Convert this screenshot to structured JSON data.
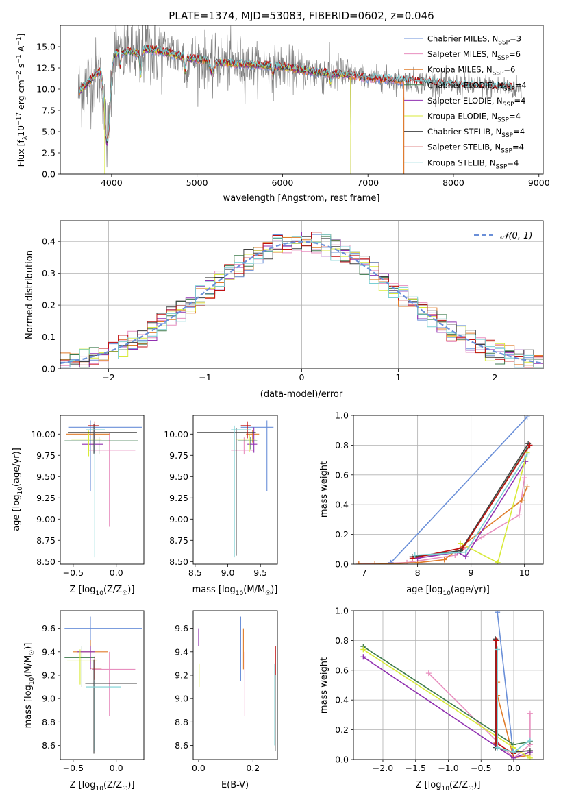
{
  "colors": {
    "chabrier_miles": "#6a8fd8",
    "salpeter_miles": "#e88fbf",
    "kroupa_miles": "#e07c2a",
    "chabrier_elodie": "#3d7a4c",
    "salpeter_elodie": "#9030b0",
    "kroupa_elodie": "#d8ea38",
    "chabrier_stelib": "#404040",
    "salpeter_stelib": "#c01010",
    "kroupa_stelib": "#7ad0d4",
    "data": "#808080",
    "gaussian": "#6a8fd8"
  },
  "chart_data": [
    {
      "id": "spectrum",
      "type": "line",
      "title": "PLATE=1374, MJD=53083, FIBERID=0602, z=0.046",
      "xlabel": "wavelength [Angstrom, rest frame]",
      "ylabel": "Flux [f_λ 10^-17 erg cm^-2 s^-1 A^-1]",
      "xlim": [
        3400,
        9050
      ],
      "ylim": [
        0,
        17.5
      ],
      "xticks": [
        4000,
        5000,
        6000,
        7000,
        8000,
        9000
      ],
      "yticks": [
        0.0,
        2.5,
        5.0,
        7.5,
        10.0,
        12.5,
        15.0
      ],
      "legend_position": "top-right",
      "legend": [
        {
          "key": "chabrier_miles",
          "label": "Chabrier MILES, N",
          "sub": "SSP",
          "suffix": "=3"
        },
        {
          "key": "salpeter_miles",
          "label": "Salpeter MILES, N",
          "sub": "SSP",
          "suffix": "=6"
        },
        {
          "key": "kroupa_miles",
          "label": "Kroupa MILES, N",
          "sub": "SSP",
          "suffix": "=6"
        },
        {
          "key": "chabrier_elodie",
          "label": "Chabrier ELODIE, N",
          "sub": "SSP",
          "suffix": "=4"
        },
        {
          "key": "salpeter_elodie",
          "label": "Salpeter ELODIE, N",
          "sub": "SSP",
          "suffix": "=4"
        },
        {
          "key": "kroupa_elodie",
          "label": "Kroupa ELODIE, N",
          "sub": "SSP",
          "suffix": "=4"
        },
        {
          "key": "chabrier_stelib",
          "label": "Chabrier STELIB, N",
          "sub": "SSP",
          "suffix": "=4"
        },
        {
          "key": "salpeter_stelib",
          "label": "Salpeter STELIB, N",
          "sub": "SSP",
          "suffix": "=4"
        },
        {
          "key": "kroupa_stelib",
          "label": "Kroupa STELIB, N",
          "sub": "SSP",
          "suffix": "=4"
        }
      ],
      "continuum": {
        "x": [
          3600,
          3700,
          3800,
          3900,
          4000,
          4100,
          4200,
          4300,
          4400,
          4500,
          4700,
          4900,
          5000,
          5200,
          5400,
          5600,
          5800,
          6000,
          6200,
          6400,
          6600,
          6800,
          7000,
          7200,
          7400,
          7600,
          7800,
          8000,
          8200,
          8400,
          8600,
          8800
        ],
        "y": [
          9.5,
          10.5,
          11.5,
          12.5,
          14.0,
          14.3,
          14.5,
          14.2,
          14.7,
          14.6,
          14.2,
          13.6,
          13.5,
          13.2,
          13.0,
          12.9,
          12.8,
          12.6,
          12.3,
          12.0,
          11.8,
          11.6,
          11.3,
          11.2,
          11.0,
          10.9,
          10.7,
          10.5,
          10.4,
          10.3,
          10.2,
          10.1
        ]
      }
    },
    {
      "id": "residuals",
      "type": "line",
      "xlabel": "(data-model)/error",
      "ylabel": "Normed distribution",
      "xlim": [
        -2.5,
        2.5
      ],
      "ylim": [
        0,
        0.465
      ],
      "xticks": [
        -2,
        -1,
        0,
        1,
        2
      ],
      "yticks": [
        0.0,
        0.1,
        0.2,
        0.3,
        0.4
      ],
      "grid": true,
      "legend_position": "top-right",
      "gaussian_label": "𝒩(0, 1)"
    },
    {
      "id": "age_vs_Z",
      "type": "scatter",
      "xlabel": "Z [log10(Z/Z☉)]",
      "ylabel": "age [log10(age/yr)]",
      "xlim": [
        -0.65,
        0.32
      ],
      "ylim": [
        8.47,
        10.22
      ],
      "xticks": [
        -0.5,
        0.0
      ],
      "yticks": [
        8.5,
        8.75,
        9.0,
        9.25,
        9.5,
        9.75,
        10.0
      ],
      "errorbars": [
        {
          "key": "chabrier_miles",
          "x": -0.3,
          "xerr": [
            0.25,
            0.6
          ],
          "y": 10.08,
          "yerr": [
            0.75,
            0.08
          ]
        },
        {
          "key": "salpeter_miles",
          "x": -0.08,
          "xerr": [
            0.25,
            0.3
          ],
          "y": 9.81,
          "yerr": [
            0.9,
            0.2
          ]
        },
        {
          "key": "kroupa_miles",
          "x": -0.28,
          "xerr": [
            0.3,
            0.2
          ],
          "y": 10.0,
          "yerr": [
            0.15,
            0.1
          ]
        },
        {
          "key": "chabrier_elodie",
          "x": -0.2,
          "xerr": [
            0.4,
            0.45
          ],
          "y": 9.92,
          "yerr": [
            0.15,
            0.05
          ]
        },
        {
          "key": "salpeter_elodie",
          "x": -0.25,
          "xerr": [
            0.15,
            0.1
          ],
          "y": 9.88,
          "yerr": [
            0.1,
            0.2
          ]
        },
        {
          "key": "kroupa_elodie",
          "x": -0.32,
          "xerr": [
            0.2,
            0.15
          ],
          "y": 9.94,
          "yerr": [
            0.2,
            0.1
          ]
        },
        {
          "key": "chabrier_stelib",
          "x": -0.26,
          "xerr": [
            0.3,
            0.5
          ],
          "y": 10.02,
          "yerr": [
            0.25,
            0.1
          ]
        },
        {
          "key": "salpeter_stelib",
          "x": -0.25,
          "xerr": [
            0.08,
            0.05
          ],
          "y": 10.1,
          "yerr": [
            0.15,
            0.05
          ]
        },
        {
          "key": "kroupa_stelib",
          "x": -0.25,
          "xerr": [
            0.1,
            0.12
          ],
          "y": 10.05,
          "yerr": [
            1.5,
            0.05
          ]
        }
      ]
    },
    {
      "id": "age_vs_mass",
      "type": "scatter",
      "xlabel": "mass [log10(M/M☉)]",
      "ylabel": "",
      "xlim": [
        8.47,
        9.76
      ],
      "ylim": [
        8.47,
        10.22
      ],
      "xticks": [
        8.5,
        9.0,
        9.5
      ],
      "yticks": [
        8.5,
        8.75,
        9.0,
        9.25,
        9.5,
        9.75,
        10.0
      ],
      "errorbars": [
        {
          "key": "chabrier_miles",
          "x": 9.6,
          "xerr": [
            0.4,
            0.1
          ],
          "y": 10.08,
          "yerr": [
            0.75,
            0.08
          ]
        },
        {
          "key": "salpeter_miles",
          "x": 9.25,
          "xerr": [
            0.2,
            0.15
          ],
          "y": 9.81,
          "yerr": [
            0.05,
            0.15
          ]
        },
        {
          "key": "kroupa_miles",
          "x": 9.38,
          "xerr": [
            0.1,
            0.1
          ],
          "y": 10.0,
          "yerr": [
            0.1,
            0.05
          ]
        },
        {
          "key": "chabrier_elodie",
          "x": 9.35,
          "xerr": [
            0.2,
            0.1
          ],
          "y": 9.92,
          "yerr": [
            0.1,
            0.05
          ]
        },
        {
          "key": "salpeter_elodie",
          "x": 9.4,
          "xerr": [
            0.1,
            0.05
          ],
          "y": 9.88,
          "yerr": [
            0.1,
            0.2
          ]
        },
        {
          "key": "kroupa_elodie",
          "x": 9.33,
          "xerr": [
            0.2,
            0.1
          ],
          "y": 9.94,
          "yerr": [
            0.15,
            0.05
          ]
        },
        {
          "key": "chabrier_stelib",
          "x": 9.13,
          "xerr": [
            0.6,
            0.3
          ],
          "y": 10.02,
          "yerr": [
            1.45,
            0.05
          ]
        },
        {
          "key": "salpeter_stelib",
          "x": 9.3,
          "xerr": [
            0.1,
            0.05
          ],
          "y": 10.1,
          "yerr": [
            0.15,
            0.05
          ]
        },
        {
          "key": "kroupa_stelib",
          "x": 9.1,
          "xerr": [
            0.05,
            0.25
          ],
          "y": 10.05,
          "yerr": [
            1.5,
            0.05
          ]
        }
      ]
    },
    {
      "id": "weight_vs_age",
      "type": "line",
      "xlabel": "age  [log10(age/yr)]",
      "ylabel": "mass weight",
      "xlim": [
        6.8,
        10.35
      ],
      "ylim": [
        0,
        1.0
      ],
      "xticks": [
        7,
        8,
        9,
        10
      ],
      "yticks": [
        0.0,
        0.2,
        0.4,
        0.6,
        0.8,
        1.0
      ],
      "grid": true,
      "series": [
        {
          "key": "chabrier_miles",
          "x": [
            7.5,
            10.05
          ],
          "y": [
            0.01,
            0.99
          ]
        },
        {
          "key": "salpeter_miles",
          "x": [
            6.9,
            7.8,
            8.7,
            9.2,
            9.9,
            10.0
          ],
          "y": [
            0.0,
            0.01,
            0.06,
            0.18,
            0.33,
            0.58
          ]
        },
        {
          "key": "kroupa_miles",
          "x": [
            6.9,
            7.2,
            8.0,
            8.5,
            9.95,
            10.05
          ],
          "y": [
            0.0,
            0.0,
            0.01,
            0.03,
            0.43,
            0.52
          ]
        },
        {
          "key": "chabrier_elodie",
          "x": [
            7.9,
            8.8,
            10.05
          ],
          "y": [
            0.05,
            0.08,
            0.78
          ]
        },
        {
          "key": "salpeter_elodie",
          "x": [
            8.0,
            8.75,
            8.9,
            10.02
          ],
          "y": [
            0.04,
            0.08,
            0.05,
            0.69
          ]
        },
        {
          "key": "kroupa_elodie",
          "x": [
            8.8,
            9.5,
            10.05
          ],
          "y": [
            0.14,
            0.01,
            0.75
          ]
        },
        {
          "key": "chabrier_stelib",
          "x": [
            7.9,
            8.8,
            10.07
          ],
          "y": [
            0.05,
            0.09,
            0.81
          ]
        },
        {
          "key": "salpeter_stelib",
          "x": [
            7.9,
            8.85,
            10.1
          ],
          "y": [
            0.04,
            0.11,
            0.8
          ]
        },
        {
          "key": "kroupa_stelib",
          "x": [
            7.95,
            8.9,
            10.05
          ],
          "y": [
            0.06,
            0.08,
            0.74
          ]
        }
      ]
    },
    {
      "id": "mass_vs_Z",
      "type": "scatter",
      "xlabel": "Z [log10(Z/Z☉)]",
      "ylabel": "mass [log10(M/M☉)]",
      "xlim": [
        -0.65,
        0.32
      ],
      "ylim": [
        8.48,
        9.75
      ],
      "xticks": [
        -0.5,
        0.0
      ],
      "yticks": [
        8.6,
        8.8,
        9.0,
        9.2,
        9.4,
        9.6
      ],
      "errorbars": [
        {
          "key": "chabrier_miles",
          "x": -0.3,
          "xerr": [
            0.3,
            0.6
          ],
          "y": 9.6,
          "yerr": [
            0.15,
            0.1
          ]
        },
        {
          "key": "salpeter_miles",
          "x": -0.08,
          "xerr": [
            0.2,
            0.3
          ],
          "y": 9.25,
          "yerr": [
            0.4,
            0.15
          ]
        },
        {
          "key": "kroupa_miles",
          "x": -0.3,
          "xerr": [
            0.2,
            0.2
          ],
          "y": 9.4,
          "yerr": [
            0.1,
            0.1
          ]
        },
        {
          "key": "chabrier_elodie",
          "x": -0.4,
          "xerr": [
            0.2,
            0.15
          ],
          "y": 9.35,
          "yerr": [
            0.25,
            0.1
          ]
        },
        {
          "key": "salpeter_elodie",
          "x": -0.3,
          "xerr": [
            0.15,
            0.05
          ],
          "y": 9.4,
          "yerr": [
            0.15,
            0.05
          ]
        },
        {
          "key": "kroupa_elodie",
          "x": -0.42,
          "xerr": [
            0.15,
            0.2
          ],
          "y": 9.32,
          "yerr": [
            0.2,
            0.1
          ]
        },
        {
          "key": "chabrier_stelib",
          "x": -0.26,
          "xerr": [
            0.1,
            0.5
          ],
          "y": 9.13,
          "yerr": [
            0.6,
            0.2
          ]
        },
        {
          "key": "salpeter_stelib",
          "x": -0.25,
          "xerr": [
            0.05,
            0.08
          ],
          "y": 9.26,
          "yerr": [
            0.1,
            0.1
          ]
        },
        {
          "key": "kroupa_stelib",
          "x": -0.25,
          "xerr": [
            0.1,
            0.3
          ],
          "y": 9.1,
          "yerr": [
            0.55,
            0.05
          ]
        }
      ]
    },
    {
      "id": "mass_vs_ebv",
      "type": "scatter",
      "xlabel": "E(B-V)",
      "ylabel": "",
      "xlim": [
        -0.02,
        0.29
      ],
      "ylim": [
        8.48,
        9.75
      ],
      "xticks": [
        0.0,
        0.2
      ],
      "xtick_labels": [
        "0.0",
        "0.2"
      ],
      "yticks": [
        8.6,
        8.8,
        9.0,
        9.2,
        9.4,
        9.6
      ],
      "errorbars": [
        {
          "key": "chabrier_miles",
          "x": 0.155,
          "xerr": [
            0,
            0
          ],
          "y": 9.45,
          "yerr": [
            0.3,
            0.25
          ]
        },
        {
          "key": "salpeter_miles",
          "x": 0.17,
          "xerr": [
            0,
            0
          ],
          "y": 9.25,
          "yerr": [
            0.4,
            0.15
          ]
        },
        {
          "key": "kroupa_miles",
          "x": 0.165,
          "xerr": [
            0,
            0
          ],
          "y": 9.4,
          "yerr": [
            0.15,
            0.2
          ]
        },
        {
          "key": "salpeter_elodie",
          "x": 0.0,
          "xerr": [
            0,
            0
          ],
          "y": 9.5,
          "yerr": [
            0.05,
            0.1
          ]
        },
        {
          "key": "kroupa_elodie",
          "x": 0.002,
          "xerr": [
            0,
            0
          ],
          "y": 9.2,
          "yerr": [
            0.1,
            0.1
          ]
        },
        {
          "key": "chabrier_stelib",
          "x": 0.282,
          "xerr": [
            0,
            0
          ],
          "y": 9.0,
          "yerr": [
            0.45,
            0.3
          ]
        },
        {
          "key": "salpeter_stelib",
          "x": 0.283,
          "xerr": [
            0,
            0
          ],
          "y": 9.3,
          "yerr": [
            0.1,
            0.15
          ]
        },
        {
          "key": "kroupa_stelib",
          "x": 0.28,
          "xerr": [
            0,
            0
          ],
          "y": 9.0,
          "yerr": [
            0.4,
            0.3
          ]
        }
      ]
    },
    {
      "id": "weight_vs_Z",
      "type": "line",
      "xlabel": "Z [log10(Z/Z☉)]",
      "ylabel": "mass weight",
      "xlim": [
        -2.45,
        0.45
      ],
      "ylim": [
        0,
        1.0
      ],
      "xticks": [
        -2.0,
        -1.5,
        -1.0,
        -0.5,
        0.0
      ],
      "yticks": [
        0.0,
        0.2,
        0.4,
        0.6,
        0.8,
        1.0
      ],
      "grid": true,
      "series": [
        {
          "key": "chabrier_miles",
          "x": [
            -0.25,
            0.0
          ],
          "y": [
            0.99,
            0.01
          ]
        },
        {
          "key": "salpeter_miles",
          "x": [
            -1.3,
            0.0,
            0.25,
            0.25
          ],
          "y": [
            0.58,
            0.01,
            0.1,
            0.31
          ]
        },
        {
          "key": "kroupa_miles",
          "x": [
            -0.25,
            -0.25,
            0.0,
            0.25
          ],
          "y": [
            0.52,
            0.43,
            0.01,
            0.03
          ]
        },
        {
          "key": "chabrier_elodie",
          "x": [
            -2.3,
            0.0,
            0.25
          ],
          "y": [
            0.76,
            0.1,
            0.12
          ]
        },
        {
          "key": "salpeter_elodie",
          "x": [
            -2.3,
            0.0,
            0.25
          ],
          "y": [
            0.69,
            0.01,
            0.05
          ]
        },
        {
          "key": "kroupa_elodie",
          "x": [
            -2.3,
            0.0,
            0.25
          ],
          "y": [
            0.74,
            0.08,
            0.01
          ]
        },
        {
          "key": "chabrier_stelib",
          "x": [
            -0.28,
            -0.28,
            0.0,
            0.25
          ],
          "y": [
            0.81,
            0.08,
            0.05,
            0.06
          ]
        },
        {
          "key": "salpeter_stelib",
          "x": [
            -0.27,
            -0.27,
            0.0
          ],
          "y": [
            0.8,
            0.11,
            0.04
          ]
        },
        {
          "key": "kroupa_stelib",
          "x": [
            -0.25,
            -0.25,
            0.0,
            0.25
          ],
          "y": [
            0.74,
            0.08,
            0.05,
            0.13
          ]
        }
      ]
    }
  ]
}
